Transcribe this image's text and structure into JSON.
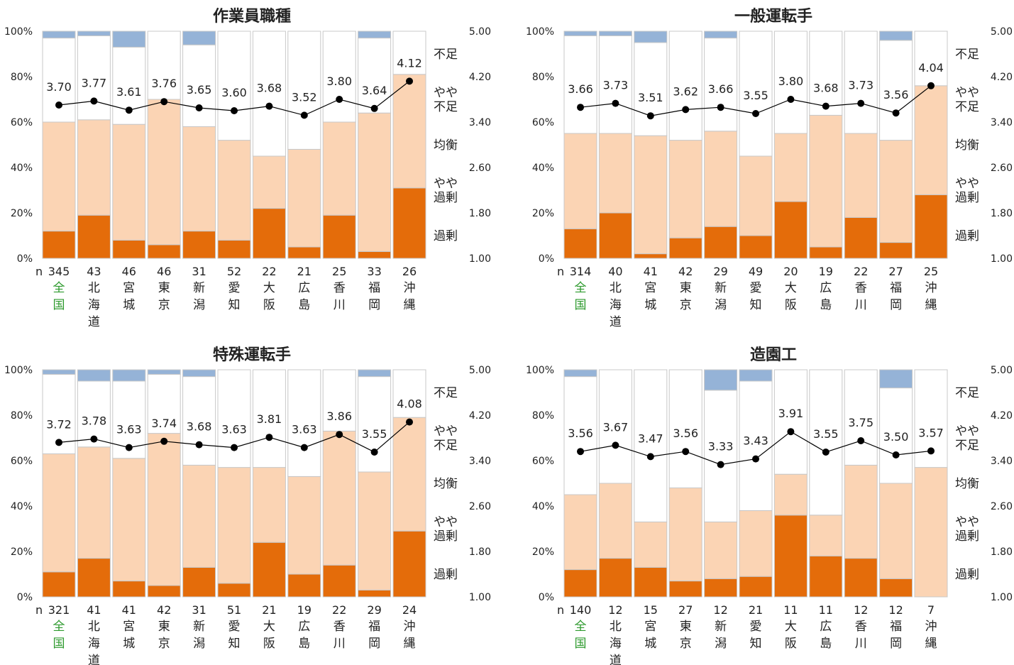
{
  "colors": {
    "kajo": "#e46c0a",
    "yaya_kajo": "#fbd4b4",
    "kinko": "#ffffff",
    "yaya_fusoku": "#ffffff",
    "fusoku": "#95b3d7",
    "line": "#000000",
    "zenkoku_text": "#2e9a2e"
  },
  "chart_data": [
    {
      "type": "bar",
      "title": "作業員職種",
      "n_label": "n",
      "y_ticks": [
        "0%",
        "20%",
        "40%",
        "60%",
        "80%",
        "100%"
      ],
      "y2_ticks": [
        "1.00",
        "1.80",
        "2.60",
        "3.40",
        "4.20",
        "5.00"
      ],
      "ylim": [
        0,
        100
      ],
      "y2lim": [
        1.0,
        5.0
      ],
      "category_labels": [
        "過剰",
        "やや過剰",
        "均衡",
        "やや不足",
        "不足"
      ],
      "categories": [
        "全国",
        "北海道",
        "宮城",
        "東京",
        "新潟",
        "愛知",
        "大阪",
        "広島",
        "香川",
        "福岡",
        "沖縄"
      ],
      "n": [
        "345",
        "43",
        "46",
        "46",
        "31",
        "52",
        "22",
        "21",
        "25",
        "33",
        "26"
      ],
      "series": [
        {
          "name": "過剰",
          "values": [
            12,
            19,
            8,
            6,
            12,
            8,
            22,
            5,
            19,
            3,
            31
          ]
        },
        {
          "name": "やや過剰",
          "values": [
            48,
            42,
            51,
            64,
            46,
            44,
            23,
            43,
            41,
            61,
            50
          ]
        },
        {
          "name": "均衡",
          "values": [
            37,
            37,
            34,
            30,
            36,
            48,
            55,
            52,
            40,
            33,
            19
          ]
        },
        {
          "name": "不足",
          "values": [
            3,
            2,
            7,
            0,
            6,
            0,
            0,
            0,
            0,
            3,
            0
          ]
        }
      ],
      "line_values": [
        3.7,
        3.77,
        3.61,
        3.76,
        3.65,
        3.6,
        3.68,
        3.52,
        3.8,
        3.64,
        4.12
      ],
      "line_labels": [
        "3.70",
        "3.77",
        "3.61",
        "3.76",
        "3.65",
        "3.60",
        "3.68",
        "3.52",
        "3.80",
        "3.64",
        "4.12"
      ]
    },
    {
      "type": "bar",
      "title": "一般運転手",
      "n_label": "n",
      "y_ticks": [
        "0%",
        "20%",
        "40%",
        "60%",
        "80%",
        "100%"
      ],
      "y2_ticks": [
        "1.00",
        "1.80",
        "2.60",
        "3.40",
        "4.20",
        "5.00"
      ],
      "ylim": [
        0,
        100
      ],
      "y2lim": [
        1.0,
        5.0
      ],
      "category_labels": [
        "過剰",
        "やや過剰",
        "均衡",
        "やや不足",
        "不足"
      ],
      "categories": [
        "全国",
        "北海道",
        "宮城",
        "東京",
        "新潟",
        "愛知",
        "大阪",
        "広島",
        "香川",
        "福岡",
        "沖縄"
      ],
      "n": [
        "314",
        "40",
        "41",
        "42",
        "29",
        "49",
        "20",
        "19",
        "22",
        "27",
        "25"
      ],
      "series": [
        {
          "name": "過剰",
          "values": [
            13,
            20,
            2,
            9,
            14,
            10,
            25,
            5,
            18,
            7,
            28
          ]
        },
        {
          "name": "やや過剰",
          "values": [
            42,
            35,
            52,
            43,
            42,
            35,
            30,
            58,
            37,
            45,
            48
          ]
        },
        {
          "name": "均衡",
          "values": [
            43,
            43,
            41,
            48,
            41,
            55,
            45,
            37,
            45,
            44,
            24
          ]
        },
        {
          "name": "不足",
          "values": [
            2,
            2,
            5,
            0,
            3,
            0,
            0,
            0,
            0,
            4,
            0
          ]
        }
      ],
      "line_values": [
        3.66,
        3.73,
        3.51,
        3.62,
        3.66,
        3.55,
        3.8,
        3.68,
        3.73,
        3.56,
        4.04
      ],
      "line_labels": [
        "3.66",
        "3.73",
        "3.51",
        "3.62",
        "3.66",
        "3.55",
        "3.80",
        "3.68",
        "3.73",
        "3.56",
        "4.04"
      ]
    },
    {
      "type": "bar",
      "title": "特殊運転手",
      "n_label": "n",
      "y_ticks": [
        "0%",
        "20%",
        "40%",
        "60%",
        "80%",
        "100%"
      ],
      "y2_ticks": [
        "1.00",
        "1.80",
        "2.60",
        "3.40",
        "4.20",
        "5.00"
      ],
      "ylim": [
        0,
        100
      ],
      "y2lim": [
        1.0,
        5.0
      ],
      "category_labels": [
        "過剰",
        "やや過剰",
        "均衡",
        "やや不足",
        "不足"
      ],
      "categories": [
        "全国",
        "北海道",
        "宮城",
        "東京",
        "新潟",
        "愛知",
        "大阪",
        "広島",
        "香川",
        "福岡",
        "沖縄"
      ],
      "n": [
        "321",
        "41",
        "41",
        "42",
        "31",
        "51",
        "21",
        "19",
        "22",
        "29",
        "24"
      ],
      "series": [
        {
          "name": "過剰",
          "values": [
            11,
            17,
            7,
            5,
            13,
            6,
            24,
            10,
            14,
            3,
            29
          ]
        },
        {
          "name": "やや過剰",
          "values": [
            52,
            49,
            54,
            67,
            45,
            51,
            33,
            43,
            59,
            52,
            50
          ]
        },
        {
          "name": "均衡",
          "values": [
            35,
            29,
            34,
            26,
            39,
            43,
            43,
            47,
            27,
            42,
            21
          ]
        },
        {
          "name": "不足",
          "values": [
            2,
            5,
            5,
            2,
            3,
            0,
            0,
            0,
            0,
            3,
            0
          ]
        }
      ],
      "line_values": [
        3.72,
        3.78,
        3.63,
        3.74,
        3.68,
        3.63,
        3.81,
        3.63,
        3.86,
        3.55,
        4.08
      ],
      "line_labels": [
        "3.72",
        "3.78",
        "3.63",
        "3.74",
        "3.68",
        "3.63",
        "3.81",
        "3.63",
        "3.86",
        "3.55",
        "4.08"
      ]
    },
    {
      "type": "bar",
      "title": "造園工",
      "n_label": "n",
      "y_ticks": [
        "0%",
        "20%",
        "40%",
        "60%",
        "80%",
        "100%"
      ],
      "y2_ticks": [
        "1.00",
        "1.80",
        "2.60",
        "3.40",
        "4.20",
        "5.00"
      ],
      "ylim": [
        0,
        100
      ],
      "y2lim": [
        1.0,
        5.0
      ],
      "category_labels": [
        "過剰",
        "やや過剰",
        "均衡",
        "やや不足",
        "不足"
      ],
      "categories": [
        "全国",
        "北海道",
        "宮城",
        "東京",
        "新潟",
        "愛知",
        "大阪",
        "広島",
        "香川",
        "福岡",
        "沖縄"
      ],
      "n": [
        "140",
        "12",
        "15",
        "27",
        "12",
        "21",
        "11",
        "11",
        "12",
        "12",
        "7"
      ],
      "series": [
        {
          "name": "過剰",
          "values": [
            12,
            17,
            13,
            7,
            8,
            9,
            36,
            18,
            17,
            8,
            0
          ]
        },
        {
          "name": "やや過剰",
          "values": [
            33,
            33,
            20,
            41,
            25,
            29,
            18,
            18,
            41,
            42,
            57
          ]
        },
        {
          "name": "均衡",
          "values": [
            52,
            50,
            67,
            52,
            58,
            57,
            46,
            64,
            42,
            42,
            43
          ]
        },
        {
          "name": "不足",
          "values": [
            3,
            0,
            0,
            0,
            9,
            5,
            0,
            0,
            0,
            8,
            0
          ]
        }
      ],
      "line_values": [
        3.56,
        3.67,
        3.47,
        3.56,
        3.33,
        3.43,
        3.91,
        3.55,
        3.75,
        3.5,
        3.57
      ],
      "line_labels": [
        "3.56",
        "3.67",
        "3.47",
        "3.56",
        "3.33",
        "3.43",
        "3.91",
        "3.55",
        "3.75",
        "3.50",
        "3.57"
      ]
    }
  ]
}
